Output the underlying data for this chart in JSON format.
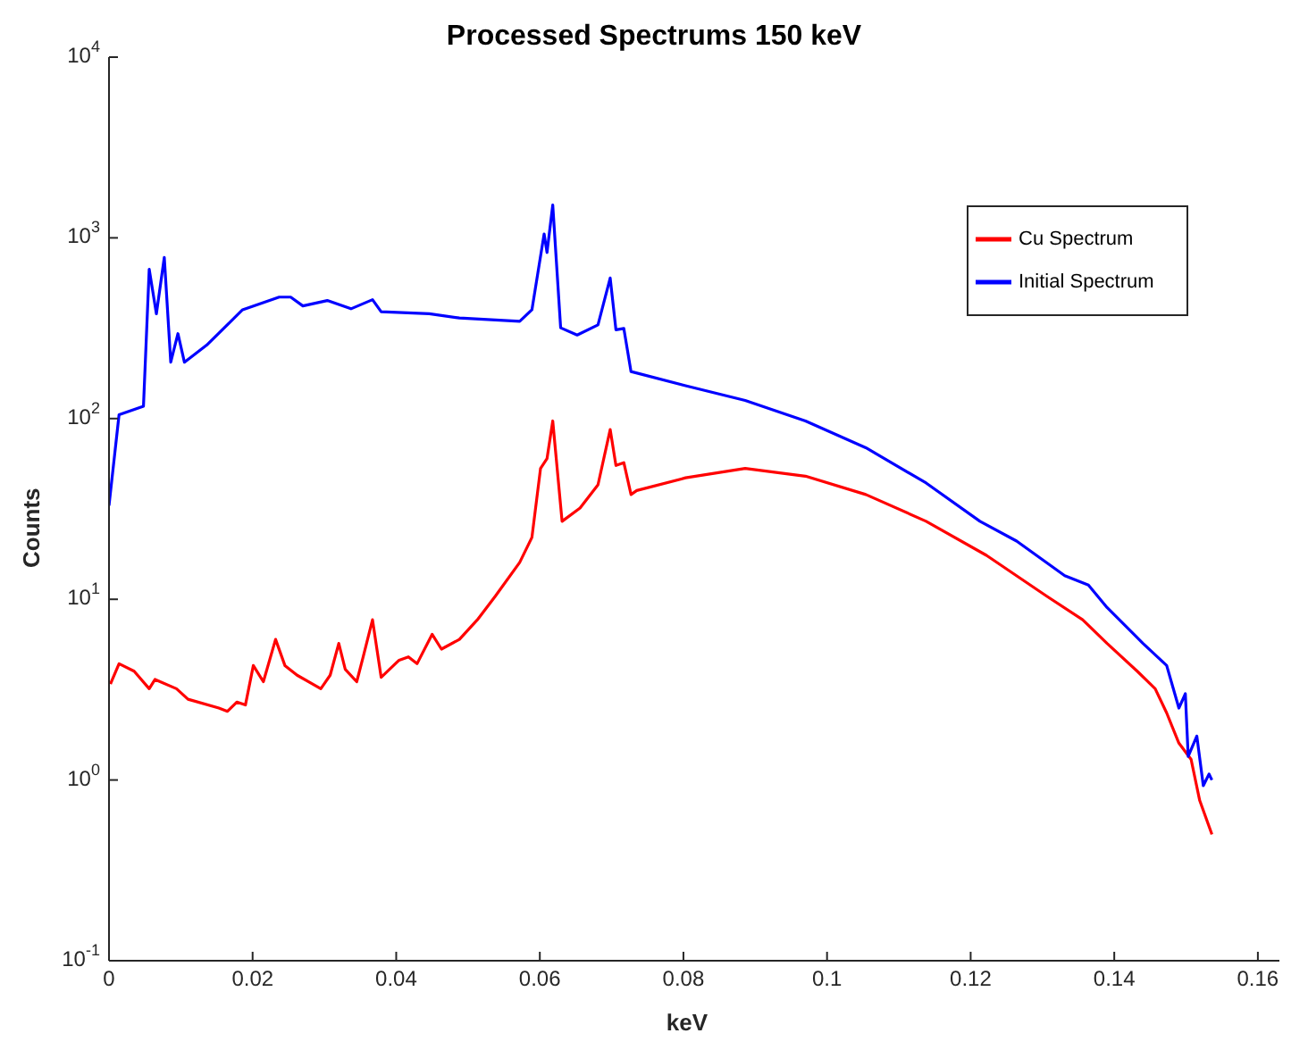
{
  "chart_data": {
    "type": "line",
    "title": "Processed Spectrums 150 keV",
    "xlabel": "keV",
    "ylabel": "Counts",
    "log": "y",
    "grid": false,
    "legend": "top right",
    "marker": "none",
    "line_style": "solid",
    "xlim": [
      0,
      0.163
    ],
    "xticks": [
      0,
      0.02,
      0.04,
      0.06,
      0.08,
      0.1,
      0.12,
      0.14,
      0.16
    ],
    "ylim": [
      0.1,
      10000
    ],
    "yticks": [
      {
        "value": 0.1,
        "label": "10$^{-1}$"
      },
      {
        "value": 1,
        "label": "10$^{0}$"
      },
      {
        "value": 10,
        "label": "10$^{1}$"
      },
      {
        "value": 100,
        "label": "10$^{2}$"
      },
      {
        "value": 1000,
        "label": "10$^{3}$"
      },
      {
        "value": 10000,
        "label": "10$^{4}$"
      }
    ],
    "series": [
      {
        "name": "Cu Spectrum",
        "color": "#ff0000",
        "x": [
          0.0002,
          0.0014,
          0.0035,
          0.0056,
          0.0064,
          0.0094,
          0.011,
          0.0153,
          0.0165,
          0.0178,
          0.019,
          0.0201,
          0.0215,
          0.0232,
          0.0245,
          0.0262,
          0.0295,
          0.0308,
          0.032,
          0.0329,
          0.0345,
          0.0354,
          0.0367,
          0.0379,
          0.0404,
          0.0417,
          0.0429,
          0.045,
          0.0463,
          0.0488,
          0.0513,
          0.0538,
          0.0572,
          0.0589,
          0.0601,
          0.061,
          0.0618,
          0.0631,
          0.0656,
          0.0681,
          0.0698,
          0.0706,
          0.0717,
          0.0727,
          0.0735,
          0.0803,
          0.0886,
          0.097,
          0.1054,
          0.1138,
          0.1222,
          0.1306,
          0.1356,
          0.139,
          0.1432,
          0.1457,
          0.1473,
          0.149,
          0.1507,
          0.1519,
          0.1536
        ],
        "values": [
          3.4,
          4.4,
          4.0,
          3.2,
          3.6,
          3.2,
          2.8,
          2.5,
          2.4,
          2.7,
          2.6,
          4.3,
          3.5,
          6.0,
          4.3,
          3.8,
          3.2,
          3.8,
          5.7,
          4.1,
          3.5,
          4.8,
          7.7,
          3.7,
          4.6,
          4.8,
          4.4,
          6.4,
          5.3,
          6.0,
          7.7,
          10.4,
          16,
          22,
          53,
          60,
          97,
          27,
          32,
          43,
          87,
          55,
          57,
          38,
          40,
          47,
          53,
          48,
          38,
          27,
          17.5,
          10.4,
          7.7,
          5.7,
          4.0,
          3.2,
          2.35,
          1.6,
          1.3,
          0.77,
          0.5
        ]
      },
      {
        "name": "Initial Spectrum",
        "color": "#0000ff",
        "x": [
          0,
          0.0014,
          0.0048,
          0.0056,
          0.0066,
          0.0077,
          0.0086,
          0.0096,
          0.0105,
          0.0136,
          0.0186,
          0.0237,
          0.0253,
          0.027,
          0.0304,
          0.0337,
          0.0367,
          0.0379,
          0.0446,
          0.0488,
          0.0572,
          0.0589,
          0.0606,
          0.061,
          0.0618,
          0.0629,
          0.0652,
          0.0681,
          0.0698,
          0.0706,
          0.0717,
          0.0727,
          0.0803,
          0.0886,
          0.097,
          0.1054,
          0.1138,
          0.1213,
          0.1264,
          0.1331,
          0.1364,
          0.139,
          0.144,
          0.1473,
          0.149,
          0.1499,
          0.1503,
          0.1515,
          0.1524,
          0.1532,
          0.1536
        ],
        "values": [
          33,
          105,
          117,
          670,
          380,
          780,
          205,
          295,
          205,
          255,
          400,
          470,
          470,
          420,
          450,
          405,
          455,
          390,
          380,
          360,
          345,
          400,
          1050,
          830,
          1520,
          318,
          290,
          330,
          600,
          310,
          315,
          182,
          152,
          126,
          97,
          69,
          44,
          27,
          21,
          13.5,
          12,
          9,
          5.7,
          4.3,
          2.5,
          3.0,
          1.35,
          1.75,
          0.93,
          1.08,
          1.0
        ]
      }
    ]
  }
}
